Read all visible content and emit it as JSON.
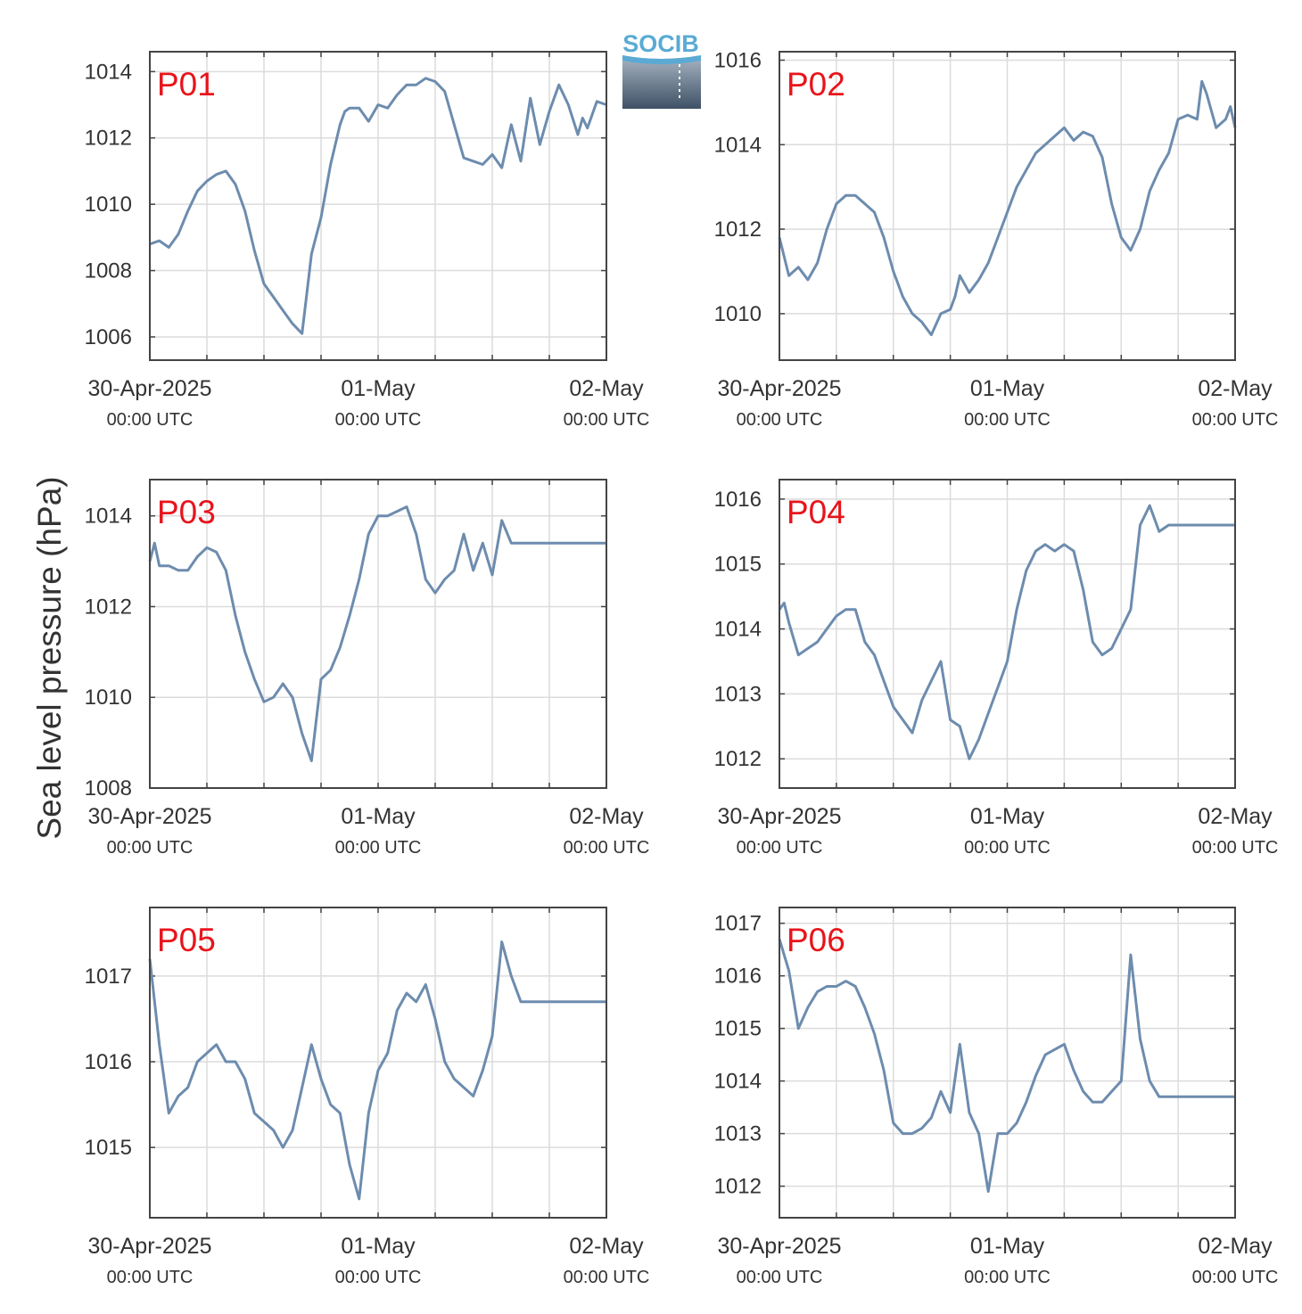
{
  "logo": {
    "text": "SOCIB"
  },
  "ylabel": "Sea level pressure (hPa)",
  "colors": {
    "line": "#6d8cae",
    "panel_label": "#e8141b",
    "grid": "#dcdcdc",
    "axis": "#444444",
    "logo_blue": "#5aaad4"
  },
  "x_ticks": [
    {
      "date": "30-Apr-2025",
      "time": "00:00 UTC",
      "hours": 0
    },
    {
      "date": "01-May",
      "time": "00:00 UTC",
      "hours": 24
    },
    {
      "date": "02-May",
      "time": "00:00 UTC",
      "hours": 48
    }
  ],
  "chart_data": [
    {
      "type": "line",
      "panel": "P01",
      "xlim": [
        0,
        48
      ],
      "ylim": [
        1005.3,
        1014.6
      ],
      "yticks": [
        1006,
        1008,
        1010,
        1012,
        1014
      ],
      "x": [
        0,
        1,
        2,
        3,
        4,
        5,
        6,
        7,
        8,
        9,
        10,
        11,
        12,
        13,
        14,
        15,
        16,
        17,
        18,
        19,
        20,
        20.5,
        21,
        22,
        23,
        24,
        25,
        26,
        27,
        28,
        29,
        30,
        31,
        32,
        33,
        34,
        35,
        36,
        37,
        38,
        39,
        40,
        41,
        42,
        43,
        44,
        45,
        45.5,
        46,
        46.5,
        47,
        48
      ],
      "y": [
        1008.8,
        1008.9,
        1008.7,
        1009.1,
        1009.8,
        1010.4,
        1010.7,
        1010.9,
        1011.0,
        1010.6,
        1009.8,
        1008.6,
        1007.6,
        1007.2,
        1006.8,
        1006.4,
        1006.1,
        1008.5,
        1009.6,
        1011.2,
        1012.4,
        1012.8,
        1012.9,
        1012.9,
        1012.5,
        1013.0,
        1012.9,
        1013.3,
        1013.6,
        1013.6,
        1013.8,
        1013.7,
        1013.4,
        1012.4,
        1011.4,
        1011.3,
        1011.2,
        1011.5,
        1011.1,
        1012.4,
        1011.3,
        1013.2,
        1011.8,
        1012.8,
        1013.6,
        1013.0,
        1012.1,
        1012.6,
        1012.3,
        1012.7,
        1013.1,
        1013.0
      ]
    },
    {
      "type": "line",
      "panel": "P02",
      "xlim": [
        0,
        48
      ],
      "ylim": [
        1008.9,
        1016.2
      ],
      "yticks": [
        1010,
        1012,
        1014,
        1016
      ],
      "x": [
        0,
        1,
        2,
        3,
        4,
        5,
        6,
        7,
        8,
        9,
        10,
        11,
        12,
        13,
        14,
        15,
        16,
        17,
        18,
        18.5,
        19,
        20,
        21,
        22,
        23,
        24,
        25,
        26,
        27,
        28,
        29,
        30,
        31,
        32,
        33,
        34,
        35,
        36,
        37,
        38,
        39,
        40,
        41,
        42,
        43,
        44,
        44.5,
        45,
        46,
        47,
        47.5,
        48
      ],
      "y": [
        1011.8,
        1010.9,
        1011.1,
        1010.8,
        1011.2,
        1012.0,
        1012.6,
        1012.8,
        1012.8,
        1012.6,
        1012.4,
        1011.8,
        1011.0,
        1010.4,
        1010.0,
        1009.8,
        1009.5,
        1010.0,
        1010.1,
        1010.4,
        1010.9,
        1010.5,
        1010.8,
        1011.2,
        1011.8,
        1012.4,
        1013.0,
        1013.4,
        1013.8,
        1014.0,
        1014.2,
        1014.4,
        1014.1,
        1014.3,
        1014.2,
        1013.7,
        1012.6,
        1011.8,
        1011.5,
        1012.0,
        1012.9,
        1013.4,
        1013.8,
        1014.6,
        1014.7,
        1014.6,
        1015.5,
        1015.2,
        1014.4,
        1014.6,
        1014.9,
        1014.4
      ]
    },
    {
      "type": "line",
      "panel": "P03",
      "xlim": [
        0,
        48
      ],
      "ylim": [
        1008.0,
        1014.8
      ],
      "yticks": [
        1008,
        1010,
        1012,
        1014
      ],
      "x": [
        0,
        0.5,
        1,
        2,
        3,
        4,
        5,
        6,
        7,
        8,
        9,
        10,
        11,
        12,
        13,
        14,
        15,
        16,
        17,
        18,
        19,
        20,
        21,
        22,
        23,
        24,
        25,
        26,
        27,
        28,
        29,
        30,
        31,
        32,
        33,
        34,
        35,
        36,
        37,
        38,
        39,
        40,
        41,
        42,
        43,
        44,
        45,
        46,
        47,
        48
      ],
      "y": [
        1013.0,
        1013.4,
        1012.9,
        1012.9,
        1012.8,
        1012.8,
        1013.1,
        1013.3,
        1013.2,
        1012.8,
        1011.8,
        1011.0,
        1010.4,
        1009.9,
        1010.0,
        1010.3,
        1010.0,
        1009.2,
        1008.6,
        1010.4,
        1010.6,
        1011.1,
        1011.8,
        1012.6,
        1013.6,
        1014.0,
        1014.0,
        1014.1,
        1014.2,
        1013.6,
        1012.6,
        1012.3,
        1012.6,
        1012.8,
        1013.6,
        1012.8,
        1013.4,
        1012.7,
        1013.9,
        1013.4,
        1013.4,
        1013.4,
        1013.4,
        1013.4,
        1013.4,
        1013.4,
        1013.4,
        1013.4,
        1013.4,
        1013.4
      ]
    },
    {
      "type": "line",
      "panel": "P04",
      "xlim": [
        0,
        48
      ],
      "ylim": [
        1011.55,
        1016.3
      ],
      "yticks": [
        1012,
        1013,
        1014,
        1015,
        1016
      ],
      "x": [
        0,
        0.5,
        1,
        2,
        3,
        4,
        5,
        6,
        7,
        8,
        9,
        10,
        11,
        12,
        13,
        14,
        15,
        16,
        17,
        18,
        19,
        20,
        21,
        22,
        23,
        24,
        25,
        26,
        27,
        28,
        29,
        30,
        31,
        32,
        33,
        34,
        35,
        36,
        37,
        38,
        39,
        40,
        41,
        42,
        43,
        44,
        45,
        46,
        47,
        48
      ],
      "y": [
        1014.3,
        1014.4,
        1014.1,
        1013.6,
        1013.7,
        1013.8,
        1014.0,
        1014.2,
        1014.3,
        1014.3,
        1013.8,
        1013.6,
        1013.2,
        1012.8,
        1012.6,
        1012.4,
        1012.9,
        1013.2,
        1013.5,
        1012.6,
        1012.5,
        1012.0,
        1012.3,
        1012.7,
        1013.1,
        1013.5,
        1014.3,
        1014.9,
        1015.2,
        1015.3,
        1015.2,
        1015.3,
        1015.2,
        1014.6,
        1013.8,
        1013.6,
        1013.7,
        1014.0,
        1014.3,
        1015.6,
        1015.9,
        1015.5,
        1015.6,
        1015.6,
        1015.6,
        1015.6,
        1015.6,
        1015.6,
        1015.6,
        1015.6
      ]
    },
    {
      "type": "line",
      "panel": "P05",
      "xlim": [
        0,
        48
      ],
      "ylim": [
        1014.18,
        1017.8
      ],
      "yticks": [
        1015,
        1016,
        1017
      ],
      "x": [
        0,
        1,
        2,
        3,
        4,
        5,
        6,
        7,
        8,
        9,
        10,
        11,
        12,
        13,
        14,
        15,
        16,
        17,
        18,
        19,
        20,
        21,
        22,
        23,
        24,
        25,
        26,
        27,
        28,
        29,
        30,
        31,
        32,
        33,
        34,
        35,
        36,
        37,
        38,
        39,
        40,
        41,
        42,
        43,
        44,
        45,
        46,
        47,
        48
      ],
      "y": [
        1017.2,
        1016.2,
        1015.4,
        1015.6,
        1015.7,
        1016.0,
        1016.1,
        1016.2,
        1016.0,
        1016.0,
        1015.8,
        1015.4,
        1015.3,
        1015.2,
        1015.0,
        1015.2,
        1015.7,
        1016.2,
        1015.8,
        1015.5,
        1015.4,
        1014.8,
        1014.4,
        1015.4,
        1015.9,
        1016.1,
        1016.6,
        1016.8,
        1016.7,
        1016.9,
        1016.5,
        1016.0,
        1015.8,
        1015.7,
        1015.6,
        1015.9,
        1016.3,
        1017.4,
        1017.0,
        1016.7,
        1016.7,
        1016.7,
        1016.7,
        1016.7,
        1016.7,
        1016.7,
        1016.7,
        1016.7,
        1016.7
      ]
    },
    {
      "type": "line",
      "panel": "P06",
      "xlim": [
        0,
        48
      ],
      "ylim": [
        1011.4,
        1017.3
      ],
      "yticks": [
        1012,
        1013,
        1014,
        1015,
        1016,
        1017
      ],
      "x": [
        0,
        1,
        2,
        3,
        4,
        5,
        6,
        7,
        8,
        9,
        10,
        11,
        12,
        13,
        14,
        15,
        16,
        17,
        18,
        19,
        20,
        21,
        22,
        23,
        24,
        25,
        26,
        27,
        28,
        29,
        30,
        31,
        32,
        33,
        34,
        35,
        36,
        37,
        38,
        39,
        40,
        41,
        42,
        43,
        44,
        45,
        46,
        47,
        48
      ],
      "y": [
        1016.7,
        1016.1,
        1015.0,
        1015.4,
        1015.7,
        1015.8,
        1015.8,
        1015.9,
        1015.8,
        1015.4,
        1014.9,
        1014.2,
        1013.2,
        1013.0,
        1013.0,
        1013.1,
        1013.3,
        1013.8,
        1013.4,
        1014.7,
        1013.4,
        1013.0,
        1011.9,
        1013.0,
        1013.0,
        1013.2,
        1013.6,
        1014.1,
        1014.5,
        1014.6,
        1014.7,
        1014.2,
        1013.8,
        1013.6,
        1013.6,
        1013.8,
        1014.0,
        1016.4,
        1014.8,
        1014.0,
        1013.7,
        1013.7,
        1013.7,
        1013.7,
        1013.7,
        1013.7,
        1013.7,
        1013.7,
        1013.7
      ]
    }
  ]
}
